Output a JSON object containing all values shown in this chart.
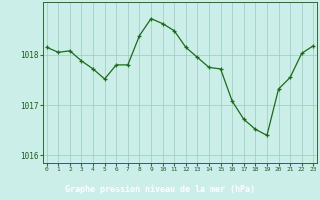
{
  "x": [
    0,
    1,
    2,
    3,
    4,
    5,
    6,
    7,
    8,
    9,
    10,
    11,
    12,
    13,
    14,
    15,
    16,
    17,
    18,
    19,
    20,
    21,
    22,
    23
  ],
  "y": [
    1018.15,
    1018.05,
    1018.08,
    1017.88,
    1017.72,
    1017.52,
    1017.8,
    1017.8,
    1018.38,
    1018.72,
    1018.62,
    1018.48,
    1018.15,
    1017.95,
    1017.75,
    1017.72,
    1017.08,
    1016.72,
    1016.52,
    1016.4,
    1017.32,
    1017.55,
    1018.03,
    1018.18
  ],
  "ylim_min": 1015.85,
  "ylim_max": 1019.05,
  "yticks": [
    1016,
    1017,
    1018
  ],
  "xtick_labels": [
    "0",
    "1",
    "2",
    "3",
    "4",
    "5",
    "6",
    "7",
    "8",
    "9",
    "10",
    "11",
    "12",
    "13",
    "14",
    "15",
    "16",
    "17",
    "18",
    "19",
    "20",
    "21",
    "22",
    "23"
  ],
  "line_color": "#1a6b1a",
  "bg_color": "#cceee8",
  "grid_color": "#99ccbb",
  "xlabel_text": "Graphe pression niveau de la mer (hPa)",
  "xlabel_bg": "#2d6b2d",
  "tick_color": "#1a5c1a",
  "border_color": "#336633"
}
